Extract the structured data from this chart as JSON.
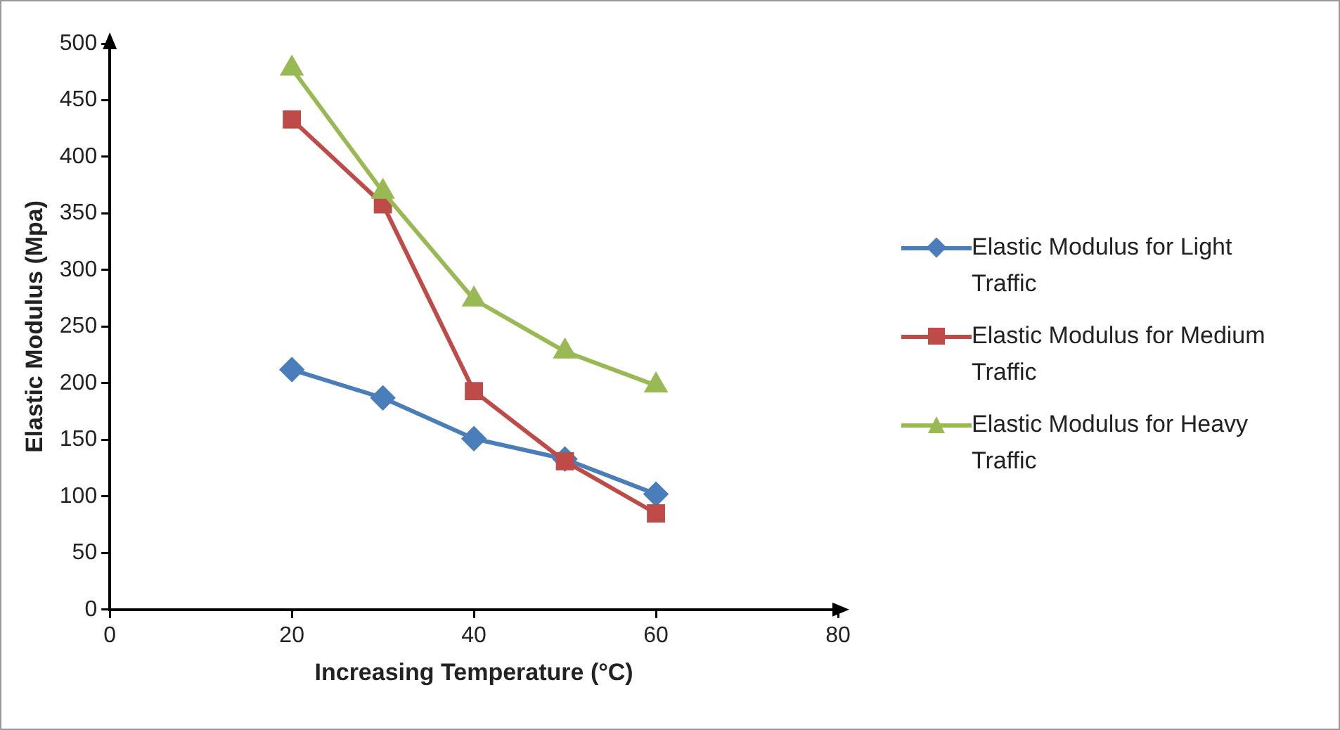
{
  "chart_data": {
    "type": "line",
    "xlabel": "Increasing Temperature (°C)",
    "ylabel": "Elastic Modulus (Mpa)",
    "x": [
      20,
      30,
      40,
      50,
      60
    ],
    "series": [
      {
        "name": "Elastic Modulus for Light Traffic",
        "color": "#4a7ebb",
        "marker": "diamond",
        "values": [
          212,
          187,
          151,
          133,
          102
        ]
      },
      {
        "name": "Elastic Modulus for Medium Traffic",
        "color": "#be4b48",
        "marker": "square",
        "values": [
          433,
          358,
          193,
          131,
          85
        ]
      },
      {
        "name": "Elastic Modulus for Heavy Traffic",
        "color": "#98b954",
        "marker": "triangle",
        "values": [
          478,
          369,
          274,
          228,
          198
        ]
      }
    ],
    "xlim": [
      0,
      80
    ],
    "xticks": [
      0,
      20,
      40,
      60,
      80
    ],
    "ylim": [
      0,
      500
    ],
    "yticks": [
      0,
      50,
      100,
      150,
      200,
      250,
      300,
      350,
      400,
      450,
      500
    ],
    "grid": false,
    "legend": "right",
    "line_style": "solid"
  }
}
